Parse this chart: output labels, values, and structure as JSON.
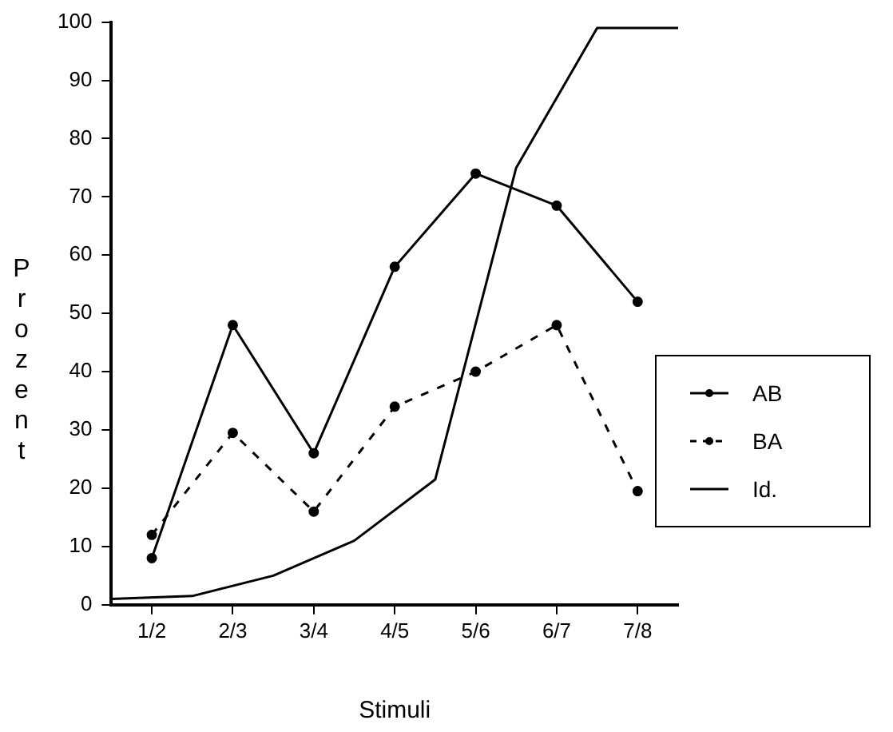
{
  "chart_data": {
    "type": "line",
    "xlabel": "Stimuli",
    "ylabel": "Prozent",
    "categories": [
      null,
      "1/2",
      null,
      "2/3",
      null,
      "3/4",
      null,
      "4/5",
      null,
      "5/6",
      null,
      "6/7",
      null,
      "7/8",
      null
    ],
    "ylim": [
      0,
      100
    ],
    "yticks": [
      0,
      10,
      20,
      30,
      40,
      50,
      60,
      70,
      80,
      90,
      100
    ],
    "grid": false,
    "legend": "right",
    "series": [
      {
        "name": "AB",
        "color": "#000000",
        "marker": "circle",
        "line_style": "solid",
        "values": [
          null,
          8,
          null,
          48,
          null,
          26,
          null,
          58,
          null,
          74,
          null,
          68.5,
          null,
          52,
          null
        ]
      },
      {
        "name": "BA",
        "color": "#000000",
        "marker": "circle",
        "line_style": "dashed",
        "values": [
          null,
          12,
          null,
          29.5,
          null,
          16,
          null,
          34,
          null,
          40,
          null,
          48,
          null,
          19.5,
          null
        ]
      },
      {
        "name": "Id.",
        "color": "#000000",
        "marker": "none",
        "line_style": "solid",
        "values": [
          1,
          null,
          1.5,
          null,
          5,
          null,
          11,
          null,
          21.5,
          null,
          75,
          null,
          99,
          null,
          99
        ]
      }
    ]
  }
}
